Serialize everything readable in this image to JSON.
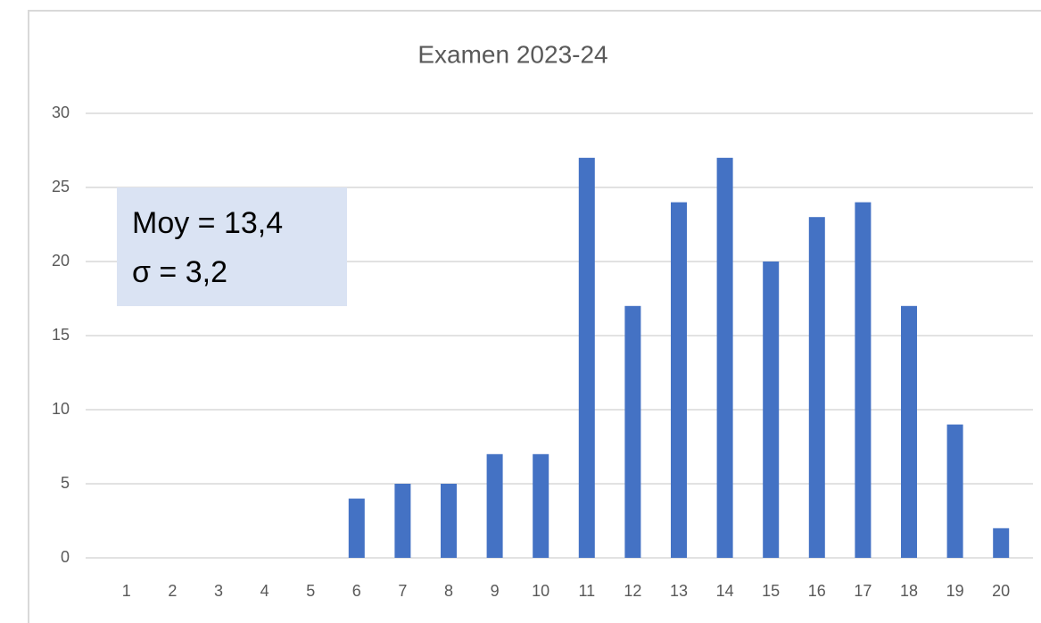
{
  "chart_data": {
    "type": "bar",
    "title": "Examen 2023-24",
    "categories": [
      "1",
      "2",
      "3",
      "4",
      "5",
      "6",
      "7",
      "8",
      "9",
      "10",
      "11",
      "12",
      "13",
      "14",
      "15",
      "16",
      "17",
      "18",
      "19",
      "20"
    ],
    "values": [
      0,
      0,
      0,
      0,
      0,
      4,
      5,
      5,
      7,
      7,
      27,
      17,
      24,
      27,
      20,
      23,
      24,
      17,
      9,
      2
    ],
    "color": "#4472c4",
    "ylim": [
      0,
      30
    ],
    "yticks": [
      0,
      5,
      10,
      15,
      20,
      25,
      30
    ],
    "grid": true,
    "annotations": [
      "Moy = 13,4",
      "σ = 3,2"
    ]
  }
}
